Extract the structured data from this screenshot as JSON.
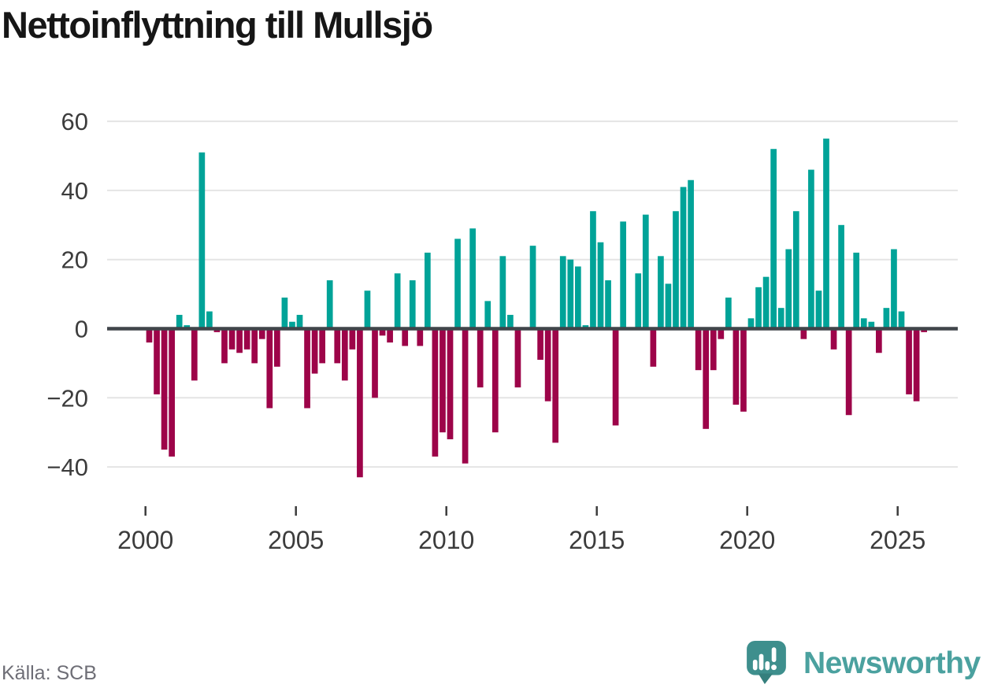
{
  "title": "Nettoinflyttning till Mullsjö",
  "source_label": "Källa: SCB",
  "brand": {
    "wordmark": "Newsworthy",
    "icon": "speech-bubble-bar-chart-icon"
  },
  "colors": {
    "positive_bar": "#00a398",
    "negative_bar": "#9d0449",
    "zero_line": "#40454a",
    "gridline": "#e4e4e4",
    "axis_text": "#3c3c3c",
    "title_text": "#161616",
    "source_text": "#6e6e76",
    "brand_teal": "#4ba19f",
    "brand_bubble": "#3e8f8d",
    "brand_bubble_pointer": "#357f7d"
  },
  "chart_data": {
    "type": "bar",
    "title": "Nettoinflyttning till Mullsjö",
    "frequency": "quarterly",
    "start": "2000-Q1",
    "end": "2025-Q4",
    "grid": true,
    "ylim": [
      -47,
      63
    ],
    "y_ticks": [
      60,
      40,
      20,
      0,
      -20,
      -40
    ],
    "y_tick_labels": [
      "60",
      "40",
      "20",
      "0",
      "−20",
      "−40"
    ],
    "x_ticks": [
      2000,
      2005,
      2010,
      2015,
      2020,
      2025
    ],
    "x_tick_labels": [
      "2000",
      "2005",
      "2010",
      "2015",
      "2020",
      "2025"
    ],
    "series": [
      {
        "name": "Nettoinflyttning till Mullsjö",
        "quarterly_values_by_year": [
          {
            "year": 2000,
            "q": [
              -4,
              -19,
              -35,
              -37
            ]
          },
          {
            "year": 2001,
            "q": [
              4,
              1,
              -15,
              51
            ]
          },
          {
            "year": 2002,
            "q": [
              5,
              -1,
              -10,
              -6
            ]
          },
          {
            "year": 2003,
            "q": [
              -7,
              -6,
              -10,
              -3
            ]
          },
          {
            "year": 2004,
            "q": [
              -23,
              -11,
              9,
              2
            ]
          },
          {
            "year": 2005,
            "q": [
              4,
              -23,
              -13,
              -10
            ]
          },
          {
            "year": 2006,
            "q": [
              14,
              -10,
              -15,
              -6
            ]
          },
          {
            "year": 2007,
            "q": [
              -43,
              11,
              -20,
              -2
            ]
          },
          {
            "year": 2008,
            "q": [
              -4,
              16,
              -5,
              14
            ]
          },
          {
            "year": 2009,
            "q": [
              -5,
              22,
              -37,
              -30
            ]
          },
          {
            "year": 2010,
            "q": [
              -32,
              26,
              -39,
              29
            ]
          },
          {
            "year": 2011,
            "q": [
              -17,
              8,
              -30,
              21
            ]
          },
          {
            "year": 2012,
            "q": [
              4,
              -17,
              0,
              24
            ]
          },
          {
            "year": 2013,
            "q": [
              -9,
              -21,
              -33,
              21
            ]
          },
          {
            "year": 2014,
            "q": [
              20,
              18,
              1,
              34
            ]
          },
          {
            "year": 2015,
            "q": [
              25,
              14,
              -28,
              31
            ]
          },
          {
            "year": 2016,
            "q": [
              0,
              16,
              33,
              -11
            ]
          },
          {
            "year": 2017,
            "q": [
              21,
              13,
              34,
              41
            ]
          },
          {
            "year": 2018,
            "q": [
              43,
              -12,
              -29,
              -12
            ]
          },
          {
            "year": 2019,
            "q": [
              -3,
              9,
              -22,
              -24
            ]
          },
          {
            "year": 2020,
            "q": [
              3,
              12,
              15,
              52
            ]
          },
          {
            "year": 2021,
            "q": [
              6,
              23,
              34,
              -3
            ]
          },
          {
            "year": 2022,
            "q": [
              46,
              11,
              55,
              -6
            ]
          },
          {
            "year": 2023,
            "q": [
              30,
              -25,
              22,
              3
            ]
          },
          {
            "year": 2024,
            "q": [
              2,
              -7,
              6,
              23
            ]
          },
          {
            "year": 2025,
            "q": [
              5,
              -19,
              -21,
              -1
            ]
          }
        ]
      }
    ]
  }
}
